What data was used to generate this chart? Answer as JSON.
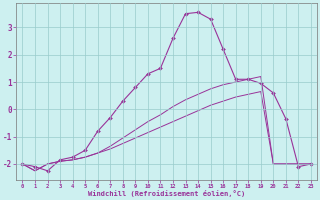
{
  "xlabel": "Windchill (Refroidissement éolien,°C)",
  "ylabel": "",
  "background_color": "#cdf0f0",
  "line_color": "#993399",
  "grid_color": "#99cccc",
  "xlim": [
    -0.5,
    23.5
  ],
  "ylim": [
    -2.6,
    3.9
  ],
  "xticks": [
    0,
    1,
    2,
    3,
    4,
    5,
    6,
    7,
    8,
    9,
    10,
    11,
    12,
    13,
    14,
    15,
    16,
    17,
    18,
    19,
    20,
    21,
    22,
    23
  ],
  "yticks": [
    -2,
    -1,
    0,
    1,
    2,
    3
  ],
  "hours": [
    0,
    1,
    2,
    3,
    4,
    5,
    6,
    7,
    8,
    9,
    10,
    11,
    12,
    13,
    14,
    15,
    16,
    17,
    18,
    19,
    20,
    21,
    22,
    23
  ],
  "main_line": [
    -2.0,
    -2.1,
    -2.25,
    -1.85,
    -1.75,
    -1.5,
    -0.8,
    -0.3,
    0.3,
    0.8,
    1.3,
    1.5,
    2.6,
    3.5,
    3.55,
    3.3,
    2.2,
    1.1,
    1.1,
    0.95,
    0.6,
    -0.35,
    -2.1,
    -2.0
  ],
  "line2": [
    -2.0,
    -2.25,
    -2.0,
    -1.9,
    -1.85,
    -1.75,
    -1.6,
    -1.45,
    -1.25,
    -1.05,
    -0.85,
    -0.65,
    -0.45,
    -0.25,
    -0.05,
    0.15,
    0.3,
    0.45,
    0.55,
    0.65,
    -2.0,
    -2.0,
    -2.0,
    -2.0
  ],
  "line3": [
    -2.0,
    -2.25,
    -2.0,
    -1.9,
    -1.85,
    -1.75,
    -1.6,
    -1.35,
    -1.05,
    -0.75,
    -0.45,
    -0.2,
    0.1,
    0.35,
    0.55,
    0.75,
    0.9,
    1.0,
    1.1,
    1.2,
    -2.0,
    -2.0,
    -2.0,
    -2.0
  ]
}
